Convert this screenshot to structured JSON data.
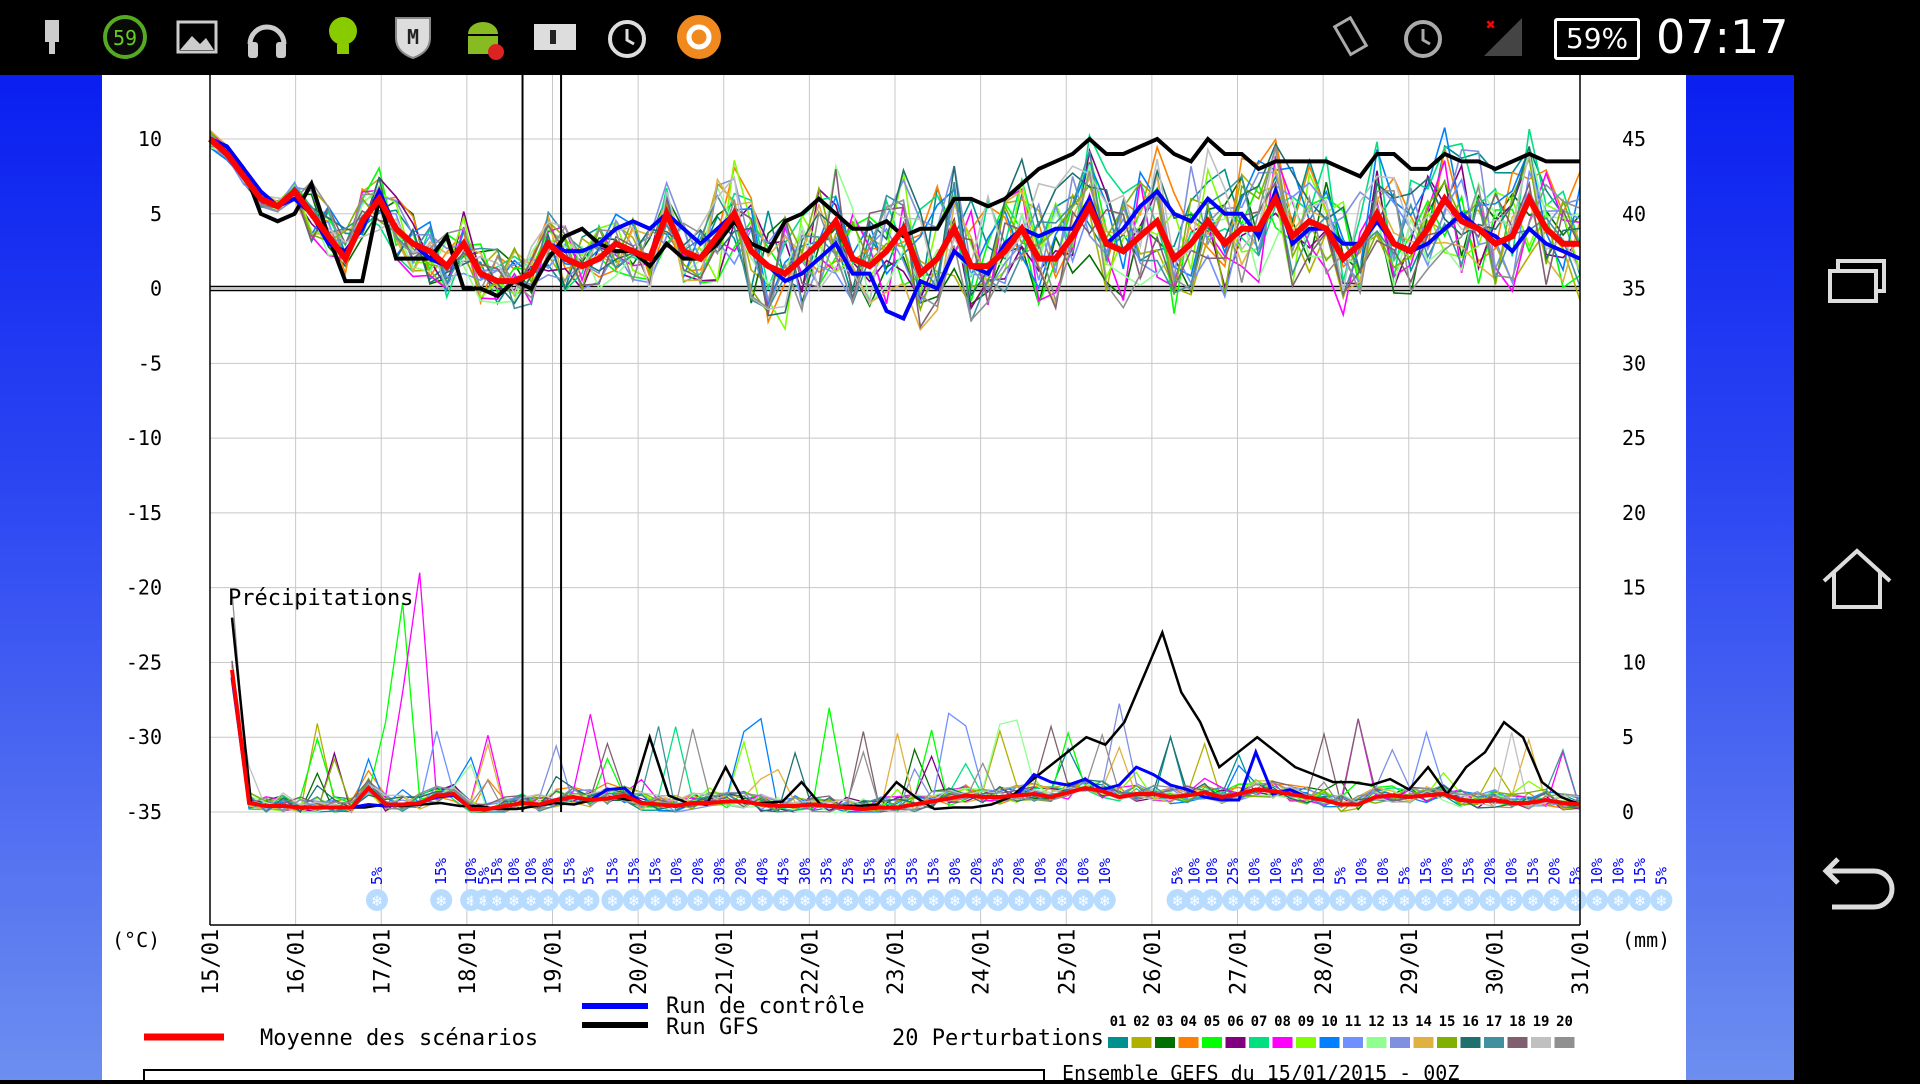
{
  "status_bar": {
    "notification_badge": "59",
    "battery_percent": "59%",
    "time": "07:17",
    "left_icons": [
      "usb-icon",
      "gauge-59-icon",
      "image-icon",
      "headphones-icon",
      "lightbulb-icon",
      "shield-m-icon",
      "android-icon",
      "info-icon",
      "alarm-icon",
      "orange-app-icon"
    ],
    "right_icons": [
      "vibrate-icon",
      "alarm-icon",
      "signal-icon",
      "battery-icon"
    ]
  },
  "nav_bar": {
    "buttons": [
      "recent-apps-icon",
      "home-icon",
      "back-icon"
    ]
  },
  "chart_data": {
    "type": "line",
    "left_axis": {
      "label": "(°C)",
      "ticks": [
        "10",
        "5",
        "0",
        "-5",
        "-10",
        "-15",
        "-20",
        "-25",
        "-30",
        "-35"
      ],
      "range": [
        -35,
        10
      ]
    },
    "right_axis": {
      "label": "(mm)",
      "ticks": [
        "45",
        "40",
        "35",
        "30",
        "25",
        "20",
        "15",
        "10",
        "5",
        "0"
      ],
      "range": [
        0,
        45
      ]
    },
    "x_ticks": [
      "15/01",
      "16/01",
      "17/01",
      "18/01",
      "19/01",
      "20/01",
      "21/01",
      "22/01",
      "23/01",
      "24/01",
      "25/01",
      "26/01",
      "27/01",
      "28/01",
      "29/01",
      "30/01",
      "31/01"
    ],
    "precip_label": "Précipitations",
    "snow_probabilities": [
      {
        "x": 1.95,
        "label": "5%"
      },
      {
        "x": 2.7,
        "label": "15%"
      },
      {
        "x": 3.05,
        "label": "10%"
      },
      {
        "x": 3.2,
        "label": "5%"
      },
      {
        "x": 3.35,
        "label": "15%"
      },
      {
        "x": 3.55,
        "label": "10%"
      },
      {
        "x": 3.75,
        "label": "10%"
      },
      {
        "x": 3.95,
        "label": "20%"
      },
      {
        "x": 4.2,
        "label": "15%"
      },
      {
        "x": 4.42,
        "label": "5%"
      },
      {
        "x": 4.7,
        "label": "15%"
      },
      {
        "x": 4.95,
        "label": "15%"
      },
      {
        "x": 5.2,
        "label": "15%"
      },
      {
        "x": 5.45,
        "label": "10%"
      },
      {
        "x": 5.7,
        "label": "20%"
      },
      {
        "x": 5.95,
        "label": "30%"
      },
      {
        "x": 6.2,
        "label": "20%"
      },
      {
        "x": 6.45,
        "label": "40%"
      },
      {
        "x": 6.7,
        "label": "45%"
      },
      {
        "x": 6.95,
        "label": "30%"
      },
      {
        "x": 7.2,
        "label": "35%"
      },
      {
        "x": 7.45,
        "label": "25%"
      },
      {
        "x": 7.7,
        "label": "15%"
      },
      {
        "x": 7.95,
        "label": "35%"
      },
      {
        "x": 8.2,
        "label": "35%"
      },
      {
        "x": 8.45,
        "label": "15%"
      },
      {
        "x": 8.7,
        "label": "30%"
      },
      {
        "x": 8.95,
        "label": "20%"
      },
      {
        "x": 9.2,
        "label": "25%"
      },
      {
        "x": 9.45,
        "label": "20%"
      },
      {
        "x": 9.7,
        "label": "10%"
      },
      {
        "x": 9.95,
        "label": "20%"
      },
      {
        "x": 10.2,
        "label": "10%"
      },
      {
        "x": 10.45,
        "label": "10%"
      },
      {
        "x": 11.3,
        "label": "5%"
      },
      {
        "x": 11.5,
        "label": "10%"
      },
      {
        "x": 11.7,
        "label": "10%"
      },
      {
        "x": 11.95,
        "label": "25%"
      },
      {
        "x": 12.2,
        "label": "10%"
      },
      {
        "x": 12.45,
        "label": "10%"
      },
      {
        "x": 12.7,
        "label": "15%"
      },
      {
        "x": 12.95,
        "label": "10%"
      },
      {
        "x": 13.2,
        "label": "5%"
      },
      {
        "x": 13.45,
        "label": "10%"
      },
      {
        "x": 13.7,
        "label": "10%"
      },
      {
        "x": 13.95,
        "label": "5%"
      },
      {
        "x": 14.2,
        "label": "15%"
      },
      {
        "x": 14.45,
        "label": "10%"
      },
      {
        "x": 14.7,
        "label": "15%"
      },
      {
        "x": 14.95,
        "label": "20%"
      },
      {
        "x": 15.2,
        "label": "10%"
      },
      {
        "x": 15.45,
        "label": "15%"
      },
      {
        "x": 15.7,
        "label": "20%"
      },
      {
        "x": 15.95,
        "label": "5%"
      },
      {
        "x": 16.2,
        "label": "10%"
      },
      {
        "x": 16.45,
        "label": "10%"
      },
      {
        "x": 16.7,
        "label": "15%"
      },
      {
        "x": 16.95,
        "label": "5%"
      }
    ],
    "legend": {
      "mean_label": "Moyenne des scénarios",
      "control_label": "Run de contrôle",
      "gfs_label": "Run GFS",
      "perturbations_label": "20 Perturbations",
      "perturbation_ids": [
        "01",
        "02",
        "03",
        "04",
        "05",
        "06",
        "07",
        "08",
        "09",
        "10",
        "11",
        "12",
        "13",
        "14",
        "15",
        "16",
        "17",
        "18",
        "19",
        "20"
      ]
    },
    "footer_text": "Ensemble GEFS du 15/01/2015 - 00Z",
    "colors": {
      "mean": "#ff0000",
      "control": "#0000ff",
      "gfs": "#000000",
      "perturbations": [
        "#009090",
        "#b0b000",
        "#007000",
        "#ff8000",
        "#00ff00",
        "#800080",
        "#00e080",
        "#ff00ff",
        "#80ff00",
        "#0080ff",
        "#7090ff",
        "#90ff90",
        "#8090e0",
        "#e0b040",
        "#80b000",
        "#207070",
        "#4090a0",
        "#806070",
        "#c0c0c0",
        "#909090"
      ],
      "snow_blue": "#0000ff",
      "snowflake_bg": "#b8dcff",
      "background_gradient": [
        "#0a1ff0",
        "#6d8ef0"
      ]
    },
    "series": {
      "mean_temp": [
        10,
        9,
        7.5,
        6,
        5.5,
        6.5,
        5,
        3.5,
        2,
        4.5,
        6,
        4,
        3,
        2.5,
        1.5,
        3,
        1,
        0.5,
        0.5,
        1,
        3,
        2,
        1.5,
        2,
        3,
        2.5,
        2,
        5,
        2.5,
        2,
        3.5,
        5,
        2.5,
        1.5,
        1,
        2,
        3,
        4.5,
        2,
        1.5,
        2.5,
        4,
        1,
        2,
        4,
        1.5,
        1.5,
        2.5,
        4,
        2,
        2,
        3.5,
        5.5,
        3,
        2.5,
        3.5,
        4.5,
        2,
        3,
        4.5,
        3,
        4,
        4,
        6,
        3.5,
        4.5,
        4,
        2,
        3,
        5,
        3,
        2.5,
        4,
        6,
        4.5,
        4,
        3,
        3.5,
        6,
        4,
        3,
        3
      ],
      "control_temp": [
        10,
        9.5,
        8,
        6.5,
        5.5,
        6,
        5,
        3,
        2.5,
        4,
        6.5,
        4,
        3,
        2,
        1.5,
        3,
        1,
        0.5,
        0.5,
        1,
        3,
        2.5,
        2.5,
        3,
        4,
        4.5,
        4,
        5,
        4,
        3,
        4,
        5,
        2.5,
        1.5,
        0.5,
        1,
        2,
        3,
        1,
        1,
        -1.5,
        -2,
        0.5,
        0,
        2.5,
        1.5,
        1,
        3,
        4,
        3.5,
        4,
        4,
        6,
        3,
        4,
        5.5,
        6.5,
        5,
        4.5,
        6,
        5,
        5,
        3.5,
        6.5,
        3,
        4,
        4,
        3,
        3,
        4.5,
        3,
        2.5,
        3,
        4,
        5,
        4,
        3.5,
        2.5,
        4,
        3,
        2.5,
        2
      ],
      "gfs_temp": [
        10,
        9.5,
        8,
        5,
        4.5,
        5,
        7,
        3.5,
        0.5,
        0.5,
        6,
        2,
        2,
        2,
        3.5,
        0,
        0,
        -0.5,
        0.5,
        0,
        2,
        3.5,
        4,
        3,
        2.5,
        2.5,
        1.5,
        3,
        2,
        2,
        3,
        4.5,
        3,
        2.5,
        4.5,
        5,
        6,
        5,
        4,
        4,
        4.5,
        3.5,
        4,
        4,
        6,
        6,
        5.5,
        6,
        7,
        8,
        8.5,
        9,
        10,
        9,
        9,
        9.5,
        10,
        9,
        8.5,
        10,
        9,
        9,
        8,
        8.5,
        8.5,
        8.5,
        8.5,
        8,
        7.5,
        9,
        9,
        8,
        8,
        9,
        8.5,
        8.5,
        8,
        8.5,
        9,
        8.5,
        8.5,
        8.5
      ],
      "mean_precip": [
        9.5,
        0.6,
        0.4,
        0.4,
        0.3,
        0.3,
        0.3,
        0.3,
        1.6,
        0.5,
        0.5,
        0.6,
        1.1,
        1.2,
        0.2,
        0.2,
        0.4,
        0.6,
        0.5,
        0.8,
        1.0,
        0.8,
        0.9,
        1.1,
        0.6,
        0.5,
        0.4,
        0.6,
        0.6,
        0.7,
        0.7,
        0.5,
        0.4,
        0.4,
        0.5,
        0.4,
        0.3,
        0.2,
        0.3,
        0.3,
        0.5,
        0.7,
        0.9,
        1.1,
        1.0,
        1.0,
        1.1,
        1.2,
        1.0,
        1.3,
        1.6,
        1.4,
        1.0,
        1.2,
        1.2,
        1.0,
        1.1,
        1.3,
        1.0,
        1.2,
        1.5,
        1.4,
        1.2,
        1.0,
        0.8,
        0.5,
        0.5,
        1.0,
        1.1,
        1.0,
        1.1,
        1.2,
        0.8,
        0.7,
        0.8,
        0.6,
        0.6,
        0.8,
        0.6,
        0.5
      ],
      "gfs_precip": [
        13,
        0.6,
        0.4,
        0.4,
        0.3,
        0.3,
        0.3,
        0.3,
        0.5,
        0.4,
        0.5,
        0.6,
        0.4,
        0.4,
        0.2,
        0.2,
        0.4,
        0.6,
        0.5,
        0.8,
        1.0,
        0.8,
        5,
        1.1,
        0.6,
        0.5,
        3,
        0.6,
        0.6,
        0.7,
        2,
        0.5,
        0.4,
        0.4,
        0.5,
        2,
        1,
        0.2,
        0.3,
        0.3,
        0.5,
        1,
        2,
        3,
        4,
        5,
        4.5,
        6,
        9,
        12,
        8,
        6,
        3,
        4,
        5,
        4,
        3,
        2.5,
        2,
        2,
        1.8,
        2.2,
        1.5,
        3,
        1.2,
        3,
        4,
        6,
        5,
        2,
        1,
        0.5
      ],
      "control_precip": [
        9,
        0.6,
        0.4,
        0.4,
        0.3,
        0.3,
        0.3,
        0.3,
        0.5,
        0.4,
        0.5,
        0.6,
        1.0,
        1.1,
        0.2,
        0.2,
        0.4,
        0.6,
        0.5,
        0.8,
        1.0,
        0.8,
        1.5,
        1.6,
        0.6,
        0.5,
        0.4,
        0.6,
        0.6,
        0.7,
        0.7,
        0.5,
        0.4,
        0.4,
        0.5,
        0.4,
        0.3,
        0.2,
        0.3,
        0.3,
        0.5,
        0.7,
        0.9,
        1.1,
        1.0,
        1.0,
        1.1,
        2.5,
        2.0,
        1.8,
        2.2,
        1.5,
        1.8,
        3,
        2.5,
        1.8,
        1.5,
        1.0,
        0.8,
        0.8,
        4,
        1.2,
        1.5,
        1.0,
        0.8,
        0.5,
        0.5,
        1.0,
        1.1,
        1.0,
        1.1,
        1.2,
        0.8,
        0.7,
        0.8,
        0.6,
        0.6,
        0.8,
        0.6,
        0.5
      ]
    }
  }
}
